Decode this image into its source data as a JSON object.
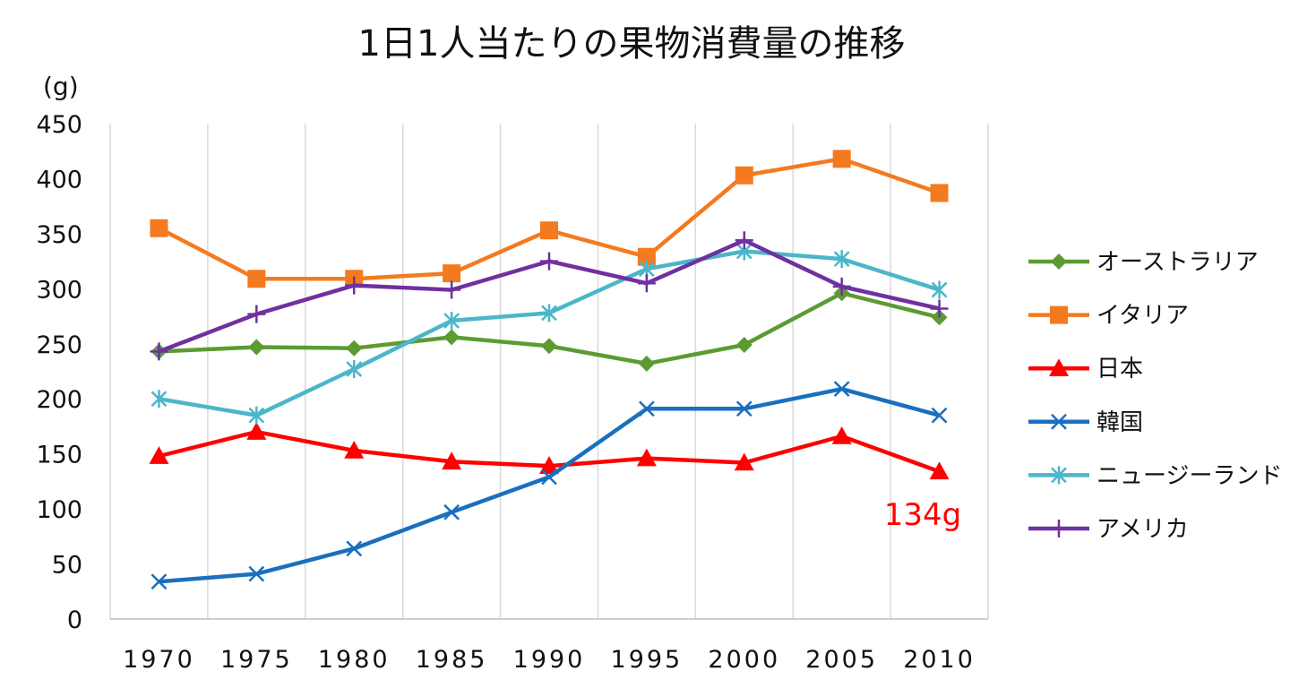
{
  "chart_data": {
    "type": "line",
    "title": "1日1人当たりの果物消費量の推移",
    "unit_label": "(g)",
    "xlabel": "",
    "ylabel": "",
    "ylim": [
      0,
      450
    ],
    "y_ticks": [
      "0",
      "50",
      "100",
      "150",
      "200",
      "250",
      "300",
      "350",
      "400",
      "450"
    ],
    "categories": [
      "1970",
      "1975",
      "1980",
      "1985",
      "1990",
      "1995",
      "2000",
      "2005",
      "2010"
    ],
    "grid": "vertical",
    "legend_position": "right",
    "series": [
      {
        "name": "オーストラリア",
        "color": "#5b9b32",
        "marker": "diamond",
        "values": [
          243,
          247,
          246,
          256,
          248,
          232,
          249,
          296,
          274
        ]
      },
      {
        "name": "イタリア",
        "color": "#f47a20",
        "marker": "square",
        "values": [
          355,
          309,
          309,
          314,
          353,
          329,
          403,
          418,
          387
        ]
      },
      {
        "name": "日本",
        "color": "#ff0000",
        "marker": "triangle",
        "values": [
          148,
          170,
          153,
          143,
          139,
          146,
          142,
          166,
          134
        ]
      },
      {
        "name": "韓国",
        "color": "#1a6fbf",
        "marker": "x",
        "values": [
          34,
          41,
          64,
          97,
          129,
          191,
          191,
          209,
          185
        ]
      },
      {
        "name": "ニュージーランド",
        "color": "#4bb6c9",
        "marker": "asterisk",
        "values": [
          200,
          185,
          227,
          271,
          278,
          318,
          334,
          327,
          299
        ]
      },
      {
        "name": "アメリカ",
        "color": "#7030a0",
        "marker": "plus",
        "values": [
          243,
          277,
          303,
          299,
          325,
          305,
          344,
          302,
          282
        ]
      }
    ],
    "annotations": [
      {
        "text": "134g",
        "series": "日本",
        "category": "2010",
        "color": "#ff0000"
      }
    ]
  }
}
